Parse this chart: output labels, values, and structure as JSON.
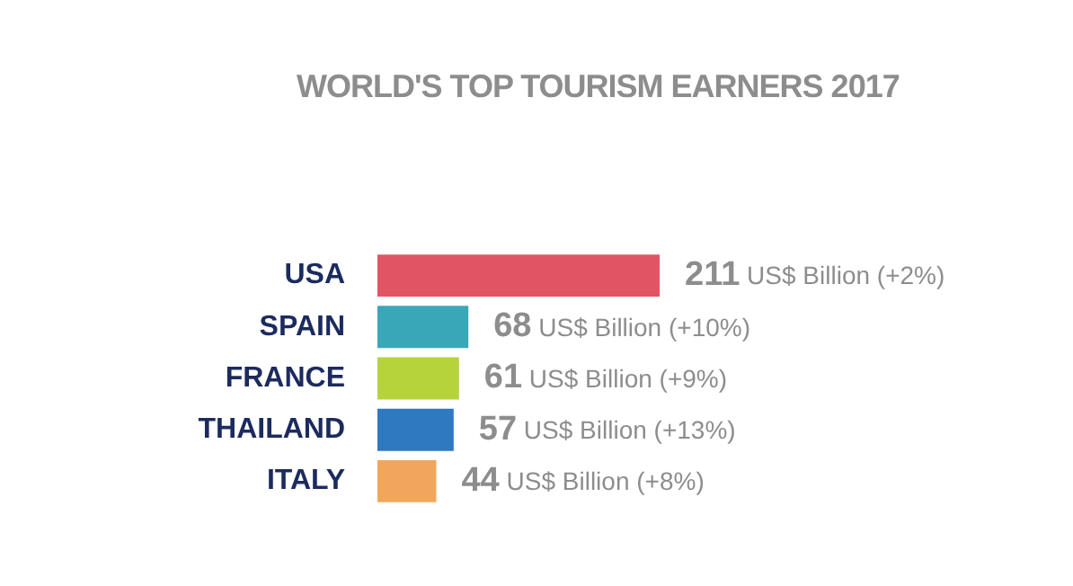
{
  "chart_data": {
    "type": "bar",
    "orientation": "horizontal",
    "title": "WORLD'S TOP TOURISM EARNERS 2017",
    "categories": [
      "USA",
      "SPAIN",
      "FRANCE",
      "THAILAND",
      "ITALY"
    ],
    "values": [
      211,
      68,
      61,
      57,
      44
    ],
    "colors": [
      "#e15464",
      "#3aa7b9",
      "#b6d33c",
      "#2f79c1",
      "#f2a65b"
    ],
    "value_labels": [
      "211 US$ Billion (+2%)",
      "68 US$ Billion (+10%)",
      "61 US$ Billion (+9%)",
      "57 US$ Billion (+13%)",
      "44 US$ Billion (+8%)"
    ],
    "tick_labels": "y",
    "grid": false,
    "legend": false
  }
}
